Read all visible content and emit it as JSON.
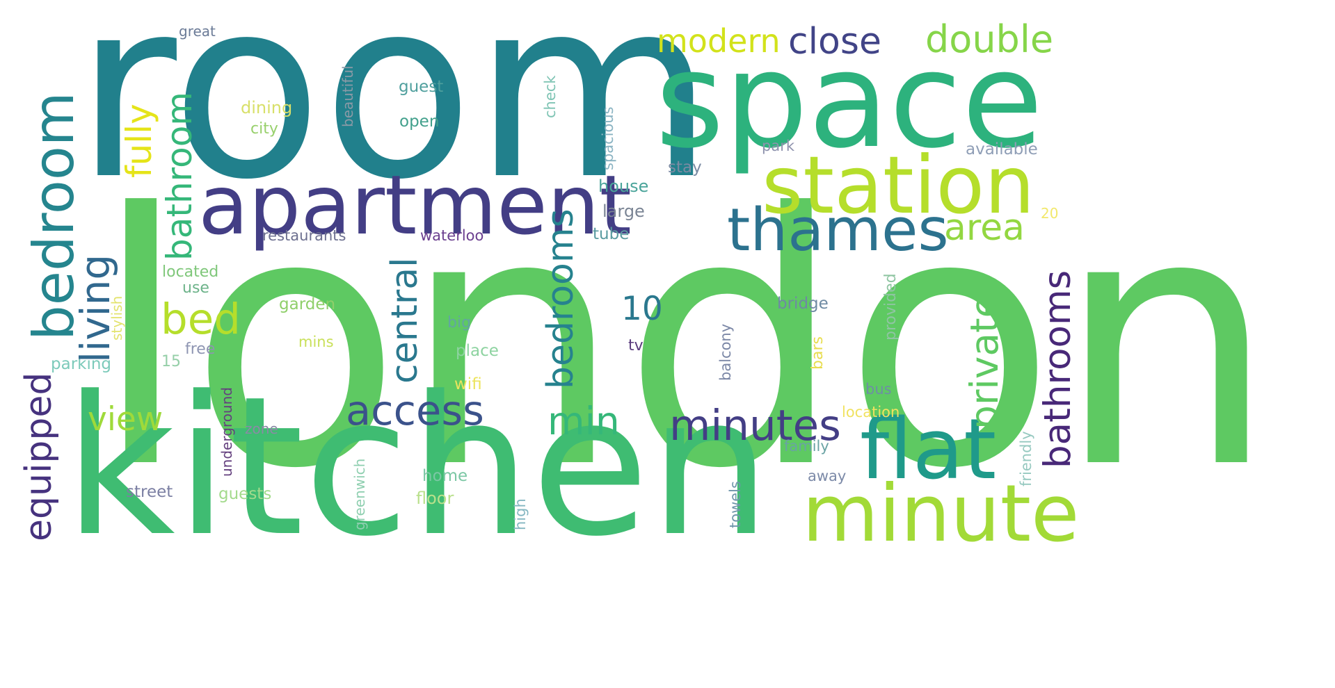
{
  "words": [
    {
      "text": "london",
      "color": "#5ec962"
    },
    {
      "text": "room",
      "color": "#21808c"
    },
    {
      "text": "kitchen",
      "color": "#3fbc72"
    },
    {
      "text": "space",
      "color": "#2db27d"
    },
    {
      "text": "apartment",
      "color": "#433e85"
    },
    {
      "text": "station",
      "color": "#b5de2b"
    },
    {
      "text": "bedroom",
      "color": "#25858e"
    },
    {
      "text": "flat",
      "color": "#1f9a8a"
    },
    {
      "text": "minute",
      "color": "#a2da37"
    },
    {
      "text": "thames",
      "color": "#2c728e"
    },
    {
      "text": "minutes",
      "color": "#433e85"
    },
    {
      "text": "bedrooms",
      "color": "#26828e"
    },
    {
      "text": "access",
      "color": "#3b528b"
    },
    {
      "text": "living",
      "color": "#31688e"
    },
    {
      "text": "bathroom",
      "color": "#35b779"
    },
    {
      "text": "fully",
      "color": "#e5e419"
    },
    {
      "text": "equipped",
      "color": "#46327e"
    },
    {
      "text": "central",
      "color": "#2a788e"
    },
    {
      "text": "private",
      "color": "#5ec962"
    },
    {
      "text": "bathrooms",
      "color": "#482878"
    },
    {
      "text": "bed",
      "color": "#b5de2b"
    },
    {
      "text": "view",
      "color": "#9fda3a"
    },
    {
      "text": "min",
      "color": "#35b779"
    },
    {
      "text": "area",
      "color": "#93d741"
    },
    {
      "text": "double",
      "color": "#86d549"
    },
    {
      "text": "close",
      "color": "#414487"
    },
    {
      "text": "modern",
      "color": "#d2e21b"
    },
    {
      "text": "10",
      "color": "#2a788e"
    },
    {
      "text": "great",
      "color": "#6b7b97"
    },
    {
      "text": "beautiful",
      "color": "#8a9aa6"
    },
    {
      "text": "guest",
      "color": "#4f9f9d"
    },
    {
      "text": "dining",
      "color": "#d8e06a"
    },
    {
      "text": "city",
      "color": "#98d06c"
    },
    {
      "text": "open",
      "color": "#42a08c"
    },
    {
      "text": "check",
      "color": "#7fc4b4"
    },
    {
      "text": "spacious",
      "color": "#8ab3c2"
    },
    {
      "text": "park",
      "color": "#8e92ad"
    },
    {
      "text": "available",
      "color": "#8f9eb6"
    },
    {
      "text": "stay",
      "color": "#7b8ba3"
    },
    {
      "text": "house",
      "color": "#4aa49a"
    },
    {
      "text": "large",
      "color": "#7a8494"
    },
    {
      "text": "20",
      "color": "#f2e86c"
    },
    {
      "text": "restaurants",
      "color": "#6c6f8f"
    },
    {
      "text": "waterloo",
      "color": "#6b3f8f"
    },
    {
      "text": "tube",
      "color": "#5a9ba0"
    },
    {
      "text": "located",
      "color": "#7fc77a"
    },
    {
      "text": "use",
      "color": "#6db38a"
    },
    {
      "text": "stylish",
      "color": "#e3e36d"
    },
    {
      "text": "garden",
      "color": "#8fcf6a"
    },
    {
      "text": "big",
      "color": "#62a6a0"
    },
    {
      "text": "bridge",
      "color": "#6e8aa3"
    },
    {
      "text": "provided",
      "color": "#8fc5a2"
    },
    {
      "text": "mins",
      "color": "#c9e05a"
    },
    {
      "text": "tv",
      "color": "#5a3c7d"
    },
    {
      "text": "bars",
      "color": "#e8dd4f"
    },
    {
      "text": "free",
      "color": "#8e95b2"
    },
    {
      "text": "15",
      "color": "#95cfa8"
    },
    {
      "text": "place",
      "color": "#8dd3a0"
    },
    {
      "text": "balcony",
      "color": "#7b87a6"
    },
    {
      "text": "parking",
      "color": "#7ccaba"
    },
    {
      "text": "underground",
      "color": "#64407e"
    },
    {
      "text": "wifi",
      "color": "#ece45c"
    },
    {
      "text": "bus",
      "color": "#6d8fa4"
    },
    {
      "text": "location",
      "color": "#f0e260"
    },
    {
      "text": "friendly",
      "color": "#96c9c0"
    },
    {
      "text": "zone",
      "color": "#8b8aa6"
    },
    {
      "text": "family",
      "color": "#6aa3a4"
    },
    {
      "text": "home",
      "color": "#7bc7a4"
    },
    {
      "text": "away",
      "color": "#7c8aa8"
    },
    {
      "text": "street",
      "color": "#7b7fa3"
    },
    {
      "text": "guests",
      "color": "#a3da8c"
    },
    {
      "text": "floor",
      "color": "#b9e08b"
    },
    {
      "text": "greenwich",
      "color": "#8fcfb0"
    },
    {
      "text": "high",
      "color": "#85b7c2"
    },
    {
      "text": "towels",
      "color": "#6e95aa"
    }
  ]
}
